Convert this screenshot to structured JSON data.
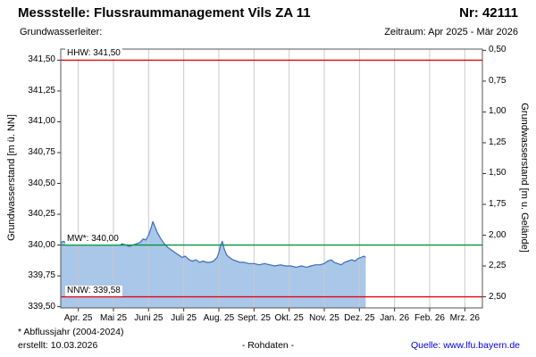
{
  "header": {
    "title": "Messstelle: Flussraummanagement Vils ZA 11",
    "station_number": "Nr: 42111",
    "aquifer_label": "Grundwasserleiter:",
    "period_label": "Zeitraum: Apr 2025 - Mär 2026"
  },
  "footer": {
    "footnote": "* Abflussjahr (2004-2024)",
    "created": "erstellt: 10.03.2026",
    "data_type": "- Rohdaten -",
    "source_prefix": "Quelle:",
    "source_url": "www.lfu.bayern.de"
  },
  "chart_data": {
    "type": "area",
    "title": "",
    "x_axis": {
      "tick_labels": [
        "Apr. 25",
        "Mai 25",
        "Juni 25",
        "Juli 25",
        "Aug. 25",
        "Sept. 25",
        "Okt. 25",
        "Nov. 25",
        "Dez. 25",
        "Jan. 26",
        "Feb. 26",
        "Mrz. 26"
      ]
    },
    "left_axis": {
      "label": "Grundwasserstand [m ü. NN]",
      "min": 339.49,
      "max": 341.59,
      "tick_values": [
        341.5,
        341.25,
        341.0,
        340.75,
        340.5,
        340.25,
        340.0,
        339.75,
        339.5
      ],
      "tick_labels": [
        "341,50",
        "341,25",
        "341,00",
        "340,75",
        "340,50",
        "340,25",
        "340,00",
        "339,75",
        "339,50"
      ]
    },
    "right_axis": {
      "label": "Grundwasserstand [m u. Gelände]",
      "ground_elevation": 342.08,
      "tick_values": [
        0.5,
        0.75,
        1.0,
        1.25,
        1.5,
        1.75,
        2.0,
        2.25,
        2.5
      ],
      "tick_labels": [
        "0,50",
        "0,75",
        "1,00",
        "1,25",
        "1,50",
        "1,75",
        "2,00",
        "2,25",
        "2,50"
      ]
    },
    "reference_lines": [
      {
        "name": "HHW",
        "label": "HHW: 341,50",
        "value": 341.5,
        "color": "#e30613"
      },
      {
        "name": "MW",
        "label": "MW*: 340,00",
        "value": 340.0,
        "color": "#009640"
      },
      {
        "name": "NNW",
        "label": "NNW: 339,58",
        "value": 339.58,
        "color": "#e30613"
      }
    ],
    "series": [
      {
        "name": "Grundwasserstand Rohdaten",
        "color": "#3c6db6",
        "fill": "#a9c7e9",
        "points": [
          [
            -0.5,
            340.02
          ],
          [
            -0.42,
            340.03
          ],
          [
            -0.35,
            340.02
          ],
          [
            -0.25,
            340.04
          ],
          [
            -0.15,
            340.05
          ],
          [
            -0.05,
            340.03
          ],
          [
            0.05,
            340.05
          ],
          [
            0.15,
            340.04
          ],
          [
            0.25,
            340.03
          ],
          [
            0.35,
            340.04
          ],
          [
            0.45,
            340.03
          ],
          [
            0.55,
            340.02
          ],
          [
            0.65,
            340.03
          ],
          [
            0.75,
            340.02
          ],
          [
            0.85,
            340.01
          ],
          [
            0.95,
            340.02
          ],
          [
            1.05,
            340.01
          ],
          [
            1.15,
            340.0
          ],
          [
            1.25,
            340.01
          ],
          [
            1.35,
            340.0
          ],
          [
            1.45,
            339.99
          ],
          [
            1.55,
            340.0
          ],
          [
            1.65,
            340.01
          ],
          [
            1.75,
            340.02
          ],
          [
            1.85,
            340.05
          ],
          [
            1.92,
            340.04
          ],
          [
            2.0,
            340.08
          ],
          [
            2.06,
            340.13
          ],
          [
            2.12,
            340.19
          ],
          [
            2.18,
            340.15
          ],
          [
            2.25,
            340.1
          ],
          [
            2.35,
            340.05
          ],
          [
            2.45,
            340.01
          ],
          [
            2.55,
            339.98
          ],
          [
            2.65,
            339.96
          ],
          [
            2.75,
            339.94
          ],
          [
            2.85,
            339.92
          ],
          [
            2.95,
            339.9
          ],
          [
            3.05,
            339.91
          ],
          [
            3.15,
            339.88
          ],
          [
            3.25,
            339.87
          ],
          [
            3.35,
            339.88
          ],
          [
            3.45,
            339.86
          ],
          [
            3.55,
            339.87
          ],
          [
            3.65,
            339.86
          ],
          [
            3.75,
            339.86
          ],
          [
            3.85,
            339.87
          ],
          [
            3.95,
            339.9
          ],
          [
            4.0,
            339.94
          ],
          [
            4.05,
            340.0
          ],
          [
            4.1,
            340.03
          ],
          [
            4.15,
            339.97
          ],
          [
            4.22,
            339.92
          ],
          [
            4.3,
            339.9
          ],
          [
            4.4,
            339.88
          ],
          [
            4.5,
            339.87
          ],
          [
            4.6,
            339.86
          ],
          [
            4.72,
            339.86
          ],
          [
            4.85,
            339.85
          ],
          [
            5.0,
            339.85
          ],
          [
            5.15,
            339.84
          ],
          [
            5.3,
            339.85
          ],
          [
            5.45,
            339.84
          ],
          [
            5.6,
            339.83
          ],
          [
            5.75,
            339.84
          ],
          [
            5.9,
            339.83
          ],
          [
            6.05,
            339.83
          ],
          [
            6.2,
            339.82
          ],
          [
            6.35,
            339.83
          ],
          [
            6.5,
            339.82
          ],
          [
            6.62,
            339.83
          ],
          [
            6.75,
            339.84
          ],
          [
            6.88,
            339.84
          ],
          [
            7.0,
            339.85
          ],
          [
            7.1,
            339.87
          ],
          [
            7.2,
            339.88
          ],
          [
            7.28,
            339.86
          ],
          [
            7.38,
            339.85
          ],
          [
            7.48,
            339.84
          ],
          [
            7.58,
            339.86
          ],
          [
            7.68,
            339.87
          ],
          [
            7.78,
            339.88
          ],
          [
            7.88,
            339.87
          ],
          [
            7.95,
            339.89
          ],
          [
            8.05,
            339.9
          ],
          [
            8.12,
            339.91
          ],
          [
            8.18,
            339.9
          ]
        ]
      }
    ],
    "colors": {
      "grid": "#c9c9c9",
      "border": "#555555",
      "tick": "#333333"
    },
    "legend": "none",
    "grid": "vertical-only"
  }
}
